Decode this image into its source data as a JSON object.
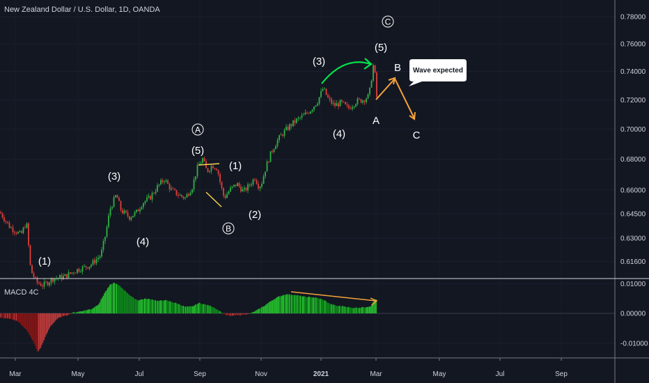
{
  "chart_title": "New Zealand Dollar / U.S. Dollar, 1D, OANDA",
  "chart_data": [
    {
      "type": "candlestick",
      "title": "New Zealand Dollar / U.S. Dollar, 1D, OANDA",
      "x_tick_labels": [
        "Mar",
        "May",
        "Jul",
        "Sep",
        "Nov",
        "2021",
        "Mar",
        "May",
        "Jul",
        "Sep"
      ],
      "y_tick_labels": [
        "0.78000",
        "0.76000",
        "0.74000",
        "0.72000",
        "0.70000",
        "0.68000",
        "0.66000",
        "0.64500",
        "0.63000",
        "0.61600"
      ],
      "y_ticks": [
        0.78,
        0.76,
        0.74,
        0.72,
        0.7,
        0.68,
        0.66,
        0.645,
        0.63,
        0.616
      ],
      "ylim": [
        0.606,
        0.7885
      ],
      "scale": "log",
      "price_path": [
        [
          0,
          0.646
        ],
        [
          14,
          0.637
        ],
        [
          30,
          0.632
        ],
        [
          38,
          0.64
        ],
        [
          44,
          0.611
        ],
        [
          52,
          0.604
        ],
        [
          62,
          0.602
        ],
        [
          76,
          0.606
        ],
        [
          92,
          0.607
        ],
        [
          110,
          0.611
        ],
        [
          130,
          0.614
        ],
        [
          145,
          0.62
        ],
        [
          152,
          0.633
        ],
        [
          158,
          0.648
        ],
        [
          167,
          0.657
        ],
        [
          174,
          0.647
        ],
        [
          186,
          0.643
        ],
        [
          196,
          0.646
        ],
        [
          205,
          0.652
        ],
        [
          215,
          0.655
        ],
        [
          226,
          0.662
        ],
        [
          236,
          0.667
        ],
        [
          246,
          0.66
        ],
        [
          256,
          0.657
        ],
        [
          266,
          0.655
        ],
        [
          276,
          0.662
        ],
        [
          284,
          0.675
        ],
        [
          291,
          0.68
        ],
        [
          297,
          0.672
        ],
        [
          305,
          0.676
        ],
        [
          312,
          0.674
        ],
        [
          317,
          0.663
        ],
        [
          322,
          0.655
        ],
        [
          330,
          0.66
        ],
        [
          340,
          0.664
        ],
        [
          350,
          0.659
        ],
        [
          358,
          0.663
        ],
        [
          366,
          0.668
        ],
        [
          372,
          0.662
        ],
        [
          376,
          0.665
        ],
        [
          382,
          0.675
        ],
        [
          390,
          0.685
        ],
        [
          398,
          0.692
        ],
        [
          406,
          0.697
        ],
        [
          416,
          0.702
        ],
        [
          426,
          0.706
        ],
        [
          436,
          0.709
        ],
        [
          446,
          0.713
        ],
        [
          456,
          0.719
        ],
        [
          464,
          0.728
        ],
        [
          472,
          0.72
        ],
        [
          480,
          0.716
        ],
        [
          490,
          0.718
        ],
        [
          500,
          0.714
        ],
        [
          512,
          0.719
        ],
        [
          522,
          0.72
        ],
        [
          530,
          0.723
        ],
        [
          536,
          0.744
        ],
        [
          539,
          0.736
        ],
        [
          541,
          0.722
        ]
      ],
      "annotations": {
        "circle_C": "C",
        "circle_A": "A",
        "circle_B": "B",
        "wave_labels": [
          "(1)",
          "(3)",
          "(4)",
          "(5)",
          "(1)",
          "(2)",
          "(3)",
          "(4)",
          "(5)",
          "A",
          "B",
          "C"
        ],
        "callout": "Wave expected"
      }
    },
    {
      "type": "bar",
      "title": "MACD 4C",
      "y_tick_labels": [
        "0.01000",
        "0.00000",
        "-0.01000"
      ],
      "y_ticks": [
        0.01,
        0.0,
        -0.01
      ],
      "ylim": [
        -0.0145,
        0.0117
      ],
      "values_path": [
        [
          0,
          -0.0015
        ],
        [
          12,
          -0.0018
        ],
        [
          25,
          -0.0025
        ],
        [
          38,
          -0.0055
        ],
        [
          48,
          -0.0095
        ],
        [
          54,
          -0.013
        ],
        [
          58,
          -0.0118
        ],
        [
          64,
          -0.0085
        ],
        [
          72,
          -0.0045
        ],
        [
          82,
          -0.0018
        ],
        [
          92,
          -0.0009
        ],
        [
          100,
          -0.0003
        ],
        [
          104,
          0.0002
        ],
        [
          112,
          0.0005
        ],
        [
          120,
          0.0009
        ],
        [
          132,
          0.0015
        ],
        [
          142,
          0.0032
        ],
        [
          150,
          0.0068
        ],
        [
          158,
          0.0095
        ],
        [
          164,
          0.0103
        ],
        [
          172,
          0.0092
        ],
        [
          182,
          0.0071
        ],
        [
          190,
          0.0054
        ],
        [
          198,
          0.0044
        ],
        [
          208,
          0.0049
        ],
        [
          218,
          0.0047
        ],
        [
          228,
          0.0041
        ],
        [
          236,
          0.0045
        ],
        [
          246,
          0.0039
        ],
        [
          256,
          0.0032
        ],
        [
          266,
          0.0022
        ],
        [
          276,
          0.0023
        ],
        [
          286,
          0.0035
        ],
        [
          296,
          0.0029
        ],
        [
          306,
          0.0022
        ],
        [
          312,
          0.0013
        ],
        [
          318,
          0.0004
        ],
        [
          322,
          -0.0004
        ],
        [
          330,
          -0.0009
        ],
        [
          338,
          -0.0007
        ],
        [
          346,
          -0.0005
        ],
        [
          352,
          -0.0003
        ],
        [
          358,
          -0.0001
        ],
        [
          362,
          0.0002
        ],
        [
          370,
          0.0012
        ],
        [
          380,
          0.0026
        ],
        [
          390,
          0.0043
        ],
        [
          400,
          0.0056
        ],
        [
          410,
          0.0064
        ],
        [
          420,
          0.0063
        ],
        [
          430,
          0.0059
        ],
        [
          440,
          0.0055
        ],
        [
          450,
          0.0054
        ],
        [
          458,
          0.005
        ],
        [
          466,
          0.0044
        ],
        [
          474,
          0.0032
        ],
        [
          484,
          0.0025
        ],
        [
          494,
          0.0024
        ],
        [
          504,
          0.0019
        ],
        [
          514,
          0.0019
        ],
        [
          524,
          0.0021
        ],
        [
          532,
          0.0024
        ],
        [
          537,
          0.0041
        ],
        [
          541,
          0.0049
        ]
      ]
    }
  ]
}
